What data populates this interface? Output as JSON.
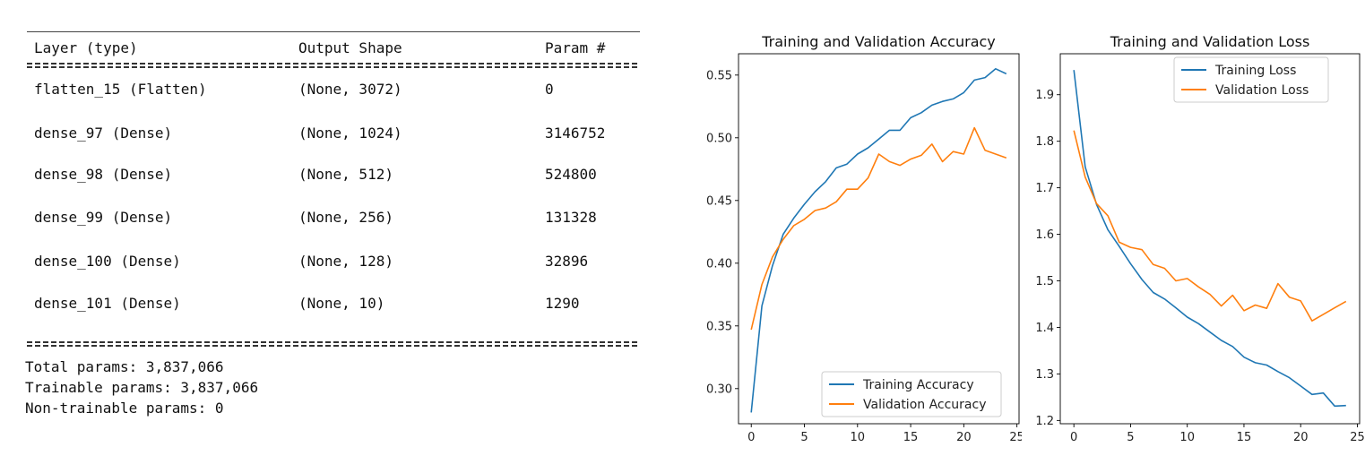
{
  "summary": {
    "header": {
      "layer": "Layer (type)",
      "shape": "Output Shape",
      "params": "Param #"
    },
    "rows": [
      {
        "layer": "flatten_15 (Flatten)",
        "shape": "(None, 3072)",
        "params": "0"
      },
      {
        "layer": "dense_97 (Dense)",
        "shape": "(None, 1024)",
        "params": "3146752"
      },
      {
        "layer": "dense_98 (Dense)",
        "shape": "(None, 512)",
        "params": "524800"
      },
      {
        "layer": "dense_99 (Dense)",
        "shape": "(None, 256)",
        "params": "131328"
      },
      {
        "layer": "dense_100 (Dense)",
        "shape": "(None, 128)",
        "params": "32896"
      },
      {
        "layer": "dense_101 (Dense)",
        "shape": "(None, 10)",
        "params": "1290"
      }
    ],
    "total": "Total params: 3,837,066",
    "trainable": "Trainable params: 3,837,066",
    "non_trainable": "Non-trainable params: 0"
  },
  "chart_data": [
    {
      "type": "line",
      "title": "Training and Validation Accuracy",
      "xlabel": "",
      "ylabel": "",
      "x": [
        0,
        1,
        2,
        3,
        4,
        5,
        6,
        7,
        8,
        9,
        10,
        11,
        12,
        13,
        14,
        15,
        16,
        17,
        18,
        19,
        20,
        21,
        22,
        23,
        24
      ],
      "xlim": [
        -1.2,
        25.2
      ],
      "ylim": [
        0.272,
        0.567
      ],
      "xticks": [
        0,
        5,
        10,
        15,
        20,
        25
      ],
      "yticks": [
        0.3,
        0.35,
        0.4,
        0.45,
        0.5,
        0.55
      ],
      "ytick_labels": [
        "0.30",
        "0.35",
        "0.40",
        "0.45",
        "0.50",
        "0.55"
      ],
      "legend_position": "lower-right",
      "series": [
        {
          "name": "Training Accuracy",
          "color": "#1f77b4",
          "values": [
            0.281,
            0.366,
            0.398,
            0.423,
            0.436,
            0.447,
            0.457,
            0.465,
            0.476,
            0.479,
            0.487,
            0.492,
            0.499,
            0.506,
            0.506,
            0.516,
            0.52,
            0.526,
            0.529,
            0.531,
            0.536,
            0.546,
            0.548,
            0.555,
            0.551
          ]
        },
        {
          "name": "Validation Accuracy",
          "color": "#ff7f0e",
          "values": [
            0.347,
            0.383,
            0.405,
            0.419,
            0.43,
            0.435,
            0.442,
            0.444,
            0.449,
            0.459,
            0.459,
            0.468,
            0.487,
            0.481,
            0.478,
            0.483,
            0.486,
            0.495,
            0.481,
            0.489,
            0.487,
            0.508,
            0.49,
            0.487,
            0.484
          ]
        }
      ]
    },
    {
      "type": "line",
      "title": "Training and Validation Loss",
      "xlabel": "",
      "ylabel": "",
      "x": [
        0,
        1,
        2,
        3,
        4,
        5,
        6,
        7,
        8,
        9,
        10,
        11,
        12,
        13,
        14,
        15,
        16,
        17,
        18,
        19,
        20,
        21,
        22,
        23,
        24
      ],
      "xlim": [
        -1.2,
        25.2
      ],
      "ylim": [
        1.193,
        1.988
      ],
      "xticks": [
        0,
        5,
        10,
        15,
        20,
        25
      ],
      "yticks": [
        1.2,
        1.3,
        1.4,
        1.5,
        1.6,
        1.7,
        1.8,
        1.9
      ],
      "ytick_labels": [
        "1.2",
        "1.3",
        "1.4",
        "1.5",
        "1.6",
        "1.7",
        "1.8",
        "1.9"
      ],
      "legend_position": "upper-right",
      "series": [
        {
          "name": "Training Loss",
          "color": "#1f77b4",
          "values": [
            1.953,
            1.745,
            1.664,
            1.61,
            1.574,
            1.537,
            1.503,
            1.475,
            1.461,
            1.442,
            1.422,
            1.408,
            1.39,
            1.372,
            1.359,
            1.336,
            1.324,
            1.319,
            1.305,
            1.292,
            1.274,
            1.256,
            1.259,
            1.231,
            1.232
          ]
        },
        {
          "name": "Validation Loss",
          "color": "#ff7f0e",
          "values": [
            1.823,
            1.723,
            1.666,
            1.64,
            1.583,
            1.572,
            1.567,
            1.535,
            1.527,
            1.5,
            1.505,
            1.487,
            1.471,
            1.446,
            1.469,
            1.436,
            1.448,
            1.441,
            1.494,
            1.465,
            1.457,
            1.414,
            1.428,
            1.442,
            1.456
          ]
        }
      ]
    }
  ]
}
